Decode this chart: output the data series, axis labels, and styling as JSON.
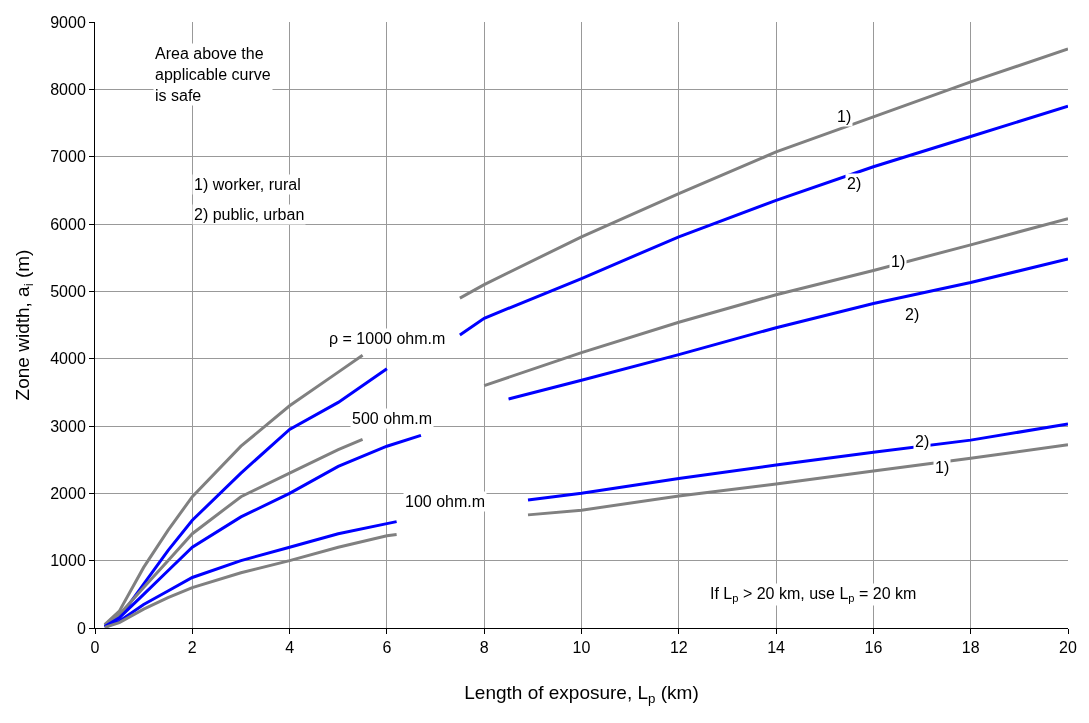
{
  "chart_data": {
    "type": "line",
    "xlabel": "Length of exposure, L$_{p}$ (km)",
    "ylabel": "Zone width, a$_{i}$ (m)",
    "series": [
      {
        "color": "#808080",
        "x": [
          0.2,
          0.5,
          1,
          1.5,
          2,
          3,
          4,
          5,
          5.5,
          6.5,
          7.5,
          8,
          10,
          12,
          14,
          16,
          18,
          20
        ],
        "values": [
          50,
          250,
          900,
          1450,
          1950,
          2700,
          3300,
          3800,
          4050,
          null,
          4900,
          5100,
          5810,
          6450,
          7070,
          7590,
          8110,
          8600
        ]
      },
      {
        "color": "#0000ff",
        "x": [
          0.2,
          0.5,
          1,
          1.5,
          2,
          3,
          4,
          5,
          6,
          6.7,
          7.5,
          8,
          10,
          12,
          14,
          16,
          18,
          20
        ],
        "values": [
          20,
          150,
          650,
          1150,
          1600,
          2300,
          2950,
          3350,
          3850,
          null,
          4350,
          4600,
          5190,
          5810,
          6350,
          6850,
          7300,
          7750
        ]
      },
      {
        "color": "#808080",
        "x": [
          0.2,
          0.5,
          1,
          1.5,
          2,
          3,
          4,
          5,
          5.5,
          6.8,
          8,
          10,
          12,
          14,
          16,
          18,
          20
        ],
        "values": [
          30,
          200,
          600,
          1000,
          1400,
          1950,
          2300,
          2650,
          2800,
          null,
          3600,
          4090,
          4540,
          4950,
          5310,
          5690,
          6080
        ]
      },
      {
        "color": "#0000ff",
        "x": [
          0.2,
          0.5,
          1,
          1.5,
          2,
          3,
          4,
          5,
          6,
          6.7,
          7.5,
          8.5,
          10,
          12,
          14,
          16,
          18,
          20
        ],
        "values": [
          20,
          150,
          500,
          850,
          1200,
          1650,
          2000,
          2400,
          2700,
          2860,
          null,
          3400,
          3680,
          4060,
          4460,
          4820,
          5130,
          5480
        ]
      },
      {
        "color": "#0000ff",
        "x": [
          0.2,
          0.5,
          1,
          1.5,
          2,
          3,
          4,
          5,
          6,
          6.2,
          7.5,
          8.9,
          10,
          12,
          14,
          16,
          18,
          20
        ],
        "values": [
          10,
          100,
          350,
          550,
          750,
          1000,
          1200,
          1400,
          1550,
          1580,
          null,
          1900,
          2000,
          2220,
          2420,
          2610,
          2790,
          3030
        ]
      },
      {
        "color": "#808080",
        "x": [
          0.2,
          0.5,
          1,
          1.5,
          2,
          3,
          4,
          5,
          6,
          6.2,
          7.5,
          8.9,
          10,
          12,
          14,
          16,
          18,
          20
        ],
        "values": [
          10,
          80,
          280,
          450,
          600,
          820,
          1000,
          1200,
          1370,
          1390,
          null,
          1680,
          1750,
          1960,
          2140,
          2330,
          2520,
          2720
        ]
      }
    ],
    "xlim": [
      0,
      20
    ],
    "xticks": [
      0,
      2,
      4,
      6,
      8,
      10,
      12,
      14,
      16,
      18,
      20
    ],
    "ylim": [
      0,
      9000
    ],
    "yticks": [
      0,
      1000,
      2000,
      3000,
      4000,
      5000,
      6000,
      7000,
      8000,
      9000
    ],
    "grid": true,
    "marker": "none",
    "line_style": "solid",
    "annotations": [
      "Area above the applicable curve is safe",
      "1) worker, rural",
      "2) public, urban",
      "If L$_{p}$ > 20 km, use L$_{p}$ = 20 km",
      "ρ = 1000 ohm.m",
      "500 ohm.m",
      "100 ohm.m",
      {
        "text": "1)",
        "x": 15.4,
        "y": 7600
      },
      {
        "text": "2)",
        "x": 15.6,
        "y": 6600
      },
      {
        "text": "1)",
        "x": 16.5,
        "y": 5450
      },
      {
        "text": "2)",
        "x": 16.8,
        "y": 4650
      },
      {
        "text": "2)",
        "x": 17.0,
        "y": 2770
      },
      {
        "text": "1)",
        "x": 17.4,
        "y": 2390
      }
    ]
  }
}
